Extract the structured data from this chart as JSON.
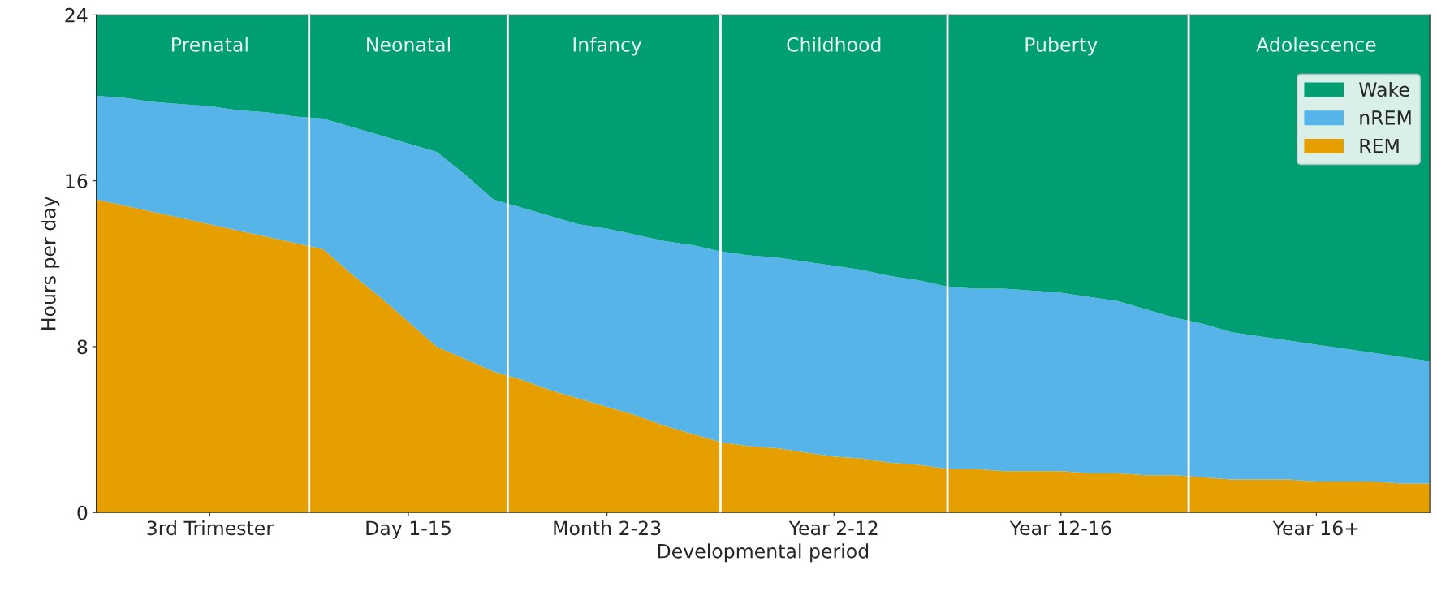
{
  "chart_data": {
    "type": "area",
    "stacked": true,
    "xlabel": "Developmental period",
    "ylabel": "Hours per day",
    "categories": [
      null,
      null,
      null,
      null,
      "3rd Trimester",
      null,
      null,
      null,
      null,
      null,
      null,
      "Day 1-15",
      null,
      null,
      null,
      null,
      null,
      null,
      "Month 2-23",
      null,
      null,
      null,
      null,
      null,
      null,
      null,
      "Year 2-12",
      null,
      null,
      null,
      null,
      null,
      null,
      null,
      "Year 12-16",
      null,
      null,
      null,
      null,
      null,
      null,
      null,
      null,
      "Year 16+",
      null,
      null,
      null,
      null
    ],
    "series": [
      {
        "name": "REM",
        "color": "#e69f00",
        "values": [
          15.1,
          14.8,
          14.5,
          14.2,
          13.9,
          13.6,
          13.3,
          13.0,
          12.7,
          11.5,
          10.4,
          9.2,
          8.0,
          7.4,
          6.8,
          6.4,
          5.9,
          5.5,
          5.1,
          4.7,
          4.2,
          3.8,
          3.4,
          3.2,
          3.1,
          2.9,
          2.7,
          2.6,
          2.4,
          2.3,
          2.1,
          2.1,
          2.0,
          2.0,
          2.0,
          1.9,
          1.9,
          1.8,
          1.8,
          1.7,
          1.6,
          1.6,
          1.6,
          1.5,
          1.5,
          1.5,
          1.4,
          1.4
        ]
      },
      {
        "name": "nREM",
        "color": "#56b4e9",
        "values": [
          5.0,
          5.2,
          5.3,
          5.5,
          5.7,
          5.8,
          6.0,
          6.1,
          6.3,
          7.1,
          7.8,
          8.6,
          9.4,
          8.9,
          8.3,
          8.3,
          8.4,
          8.4,
          8.6,
          8.7,
          8.9,
          9.1,
          9.2,
          9.2,
          9.2,
          9.2,
          9.2,
          9.1,
          9.0,
          8.9,
          8.8,
          8.7,
          8.8,
          8.7,
          8.6,
          8.5,
          8.3,
          8.0,
          7.6,
          7.4,
          7.1,
          6.9,
          6.7,
          6.6,
          6.4,
          6.2,
          6.1,
          5.9
        ]
      },
      {
        "name": "Wake",
        "color": "#009e73",
        "values": [
          3.9,
          4.0,
          4.2,
          4.3,
          4.4,
          4.6,
          4.7,
          4.9,
          5.0,
          5.4,
          5.8,
          6.2,
          6.6,
          7.7,
          8.9,
          9.3,
          9.7,
          10.1,
          10.3,
          10.6,
          10.9,
          11.1,
          11.4,
          11.6,
          11.7,
          11.9,
          12.1,
          12.3,
          12.6,
          12.8,
          13.1,
          13.2,
          13.2,
          13.3,
          13.4,
          13.6,
          13.8,
          14.2,
          14.6,
          14.9,
          15.3,
          15.5,
          15.7,
          15.9,
          16.1,
          16.3,
          16.5,
          16.7
        ]
      }
    ],
    "ylim": [
      0,
      24
    ],
    "yticks": [
      0,
      8,
      16,
      24
    ],
    "annotations": [
      "Prenatal",
      "Neonatal",
      "Infancy",
      "Childhood",
      "Puberty",
      "Adolescence"
    ],
    "legend": "top right",
    "grid": "x"
  }
}
